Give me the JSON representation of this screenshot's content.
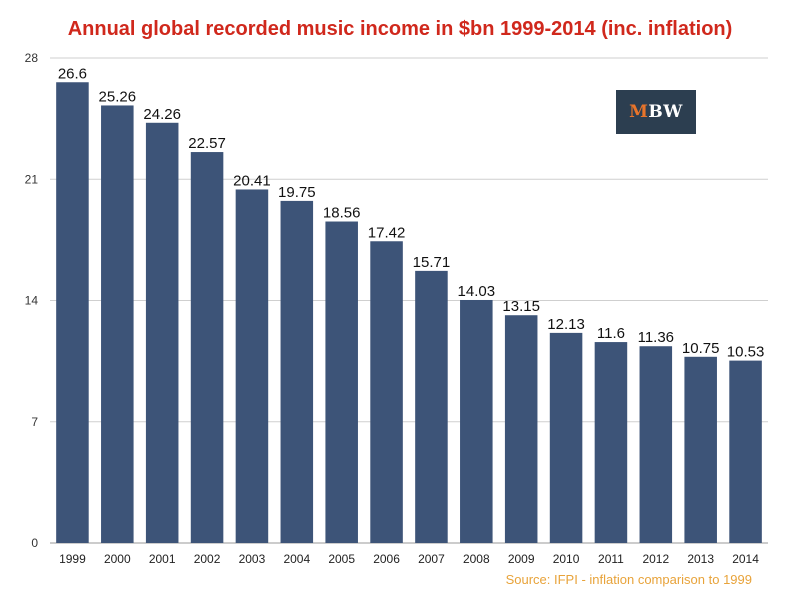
{
  "chart_data": {
    "type": "bar",
    "title": "Annual global recorded music income in $bn 1999-2014 (inc. inflation)",
    "categories": [
      "1999",
      "2000",
      "2001",
      "2002",
      "2003",
      "2004",
      "2005",
      "2006",
      "2007",
      "2008",
      "2009",
      "2010",
      "2011",
      "2012",
      "2013",
      "2014"
    ],
    "values": [
      26.6,
      25.26,
      24.26,
      22.57,
      20.41,
      19.75,
      18.56,
      17.42,
      15.71,
      14.03,
      13.15,
      12.13,
      11.6,
      11.36,
      10.75,
      10.53
    ],
    "value_labels": [
      "26.6",
      "25.26",
      "24.26",
      "22.57",
      "20.41",
      "19.75",
      "18.56",
      "17.42",
      "15.71",
      "14.03",
      "13.15",
      "12.13",
      "11.6",
      "11.36",
      "10.75",
      "10.53"
    ],
    "xlabel": "",
    "ylabel": "",
    "ylim": [
      0,
      28
    ],
    "yticks": [
      0,
      7,
      14,
      21,
      28
    ],
    "grid": true,
    "bar_color": "#3d5478",
    "grid_color": "#cfcfcf"
  },
  "source": "Source: IFPI - inflation comparison to 1999",
  "logo": {
    "m": "M",
    "bw": "BW"
  },
  "colors": {
    "title": "#d0281c",
    "source": "#e8a33a",
    "logo_bg": "#2c3e50",
    "logo_accent": "#e8742a"
  }
}
